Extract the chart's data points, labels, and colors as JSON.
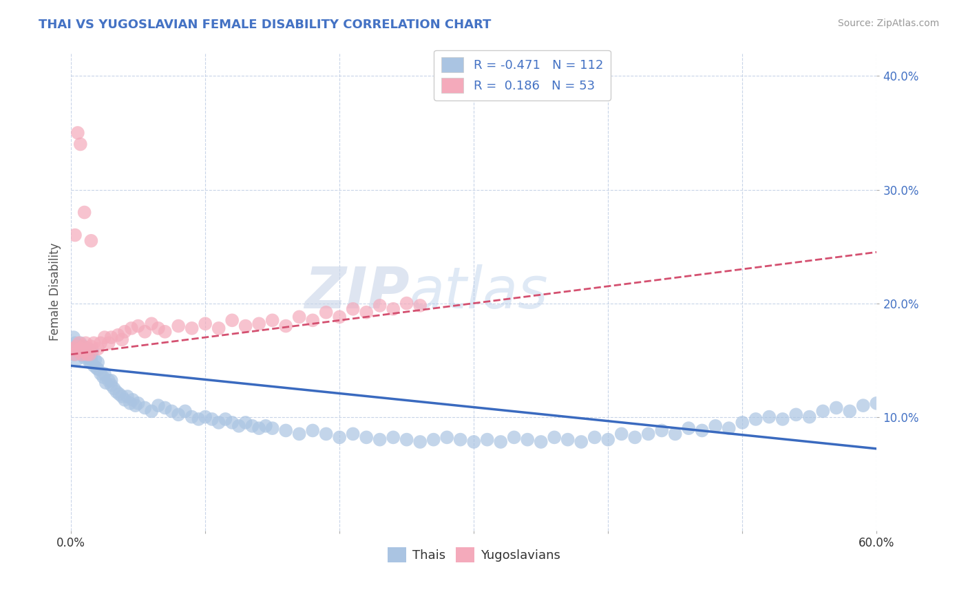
{
  "title": "THAI VS YUGOSLAVIAN FEMALE DISABILITY CORRELATION CHART",
  "source": "Source: ZipAtlas.com",
  "ylabel": "Female Disability",
  "xmin": 0.0,
  "xmax": 0.6,
  "ymin": 0.0,
  "ymax": 0.42,
  "yticks": [
    0.1,
    0.2,
    0.3,
    0.4
  ],
  "ytick_labels": [
    "10.0%",
    "20.0%",
    "30.0%",
    "40.0%"
  ],
  "xticks": [
    0.0,
    0.1,
    0.2,
    0.3,
    0.4,
    0.5,
    0.6
  ],
  "thai_R": -0.471,
  "thai_N": 112,
  "yugo_R": 0.186,
  "yugo_N": 53,
  "thai_color": "#aac4e2",
  "yugo_color": "#f4aabb",
  "thai_line_color": "#3a6abf",
  "yugo_line_color": "#d45070",
  "legend_text_color": "#4472c4",
  "title_color": "#4472c4",
  "watermark_color": "#c8d4e8",
  "background_color": "#ffffff",
  "grid_color": "#c8d4e8",
  "thai_scatter_x": [
    0.002,
    0.003,
    0.004,
    0.005,
    0.006,
    0.007,
    0.008,
    0.009,
    0.01,
    0.011,
    0.012,
    0.013,
    0.014,
    0.015,
    0.016,
    0.017,
    0.018,
    0.019,
    0.02,
    0.022,
    0.024,
    0.026,
    0.028,
    0.03,
    0.032,
    0.034,
    0.036,
    0.038,
    0.04,
    0.042,
    0.044,
    0.046,
    0.048,
    0.05,
    0.055,
    0.06,
    0.065,
    0.07,
    0.075,
    0.08,
    0.085,
    0.09,
    0.095,
    0.1,
    0.105,
    0.11,
    0.115,
    0.12,
    0.125,
    0.13,
    0.135,
    0.14,
    0.145,
    0.15,
    0.16,
    0.17,
    0.18,
    0.19,
    0.2,
    0.21,
    0.22,
    0.23,
    0.24,
    0.25,
    0.26,
    0.27,
    0.28,
    0.29,
    0.3,
    0.31,
    0.32,
    0.33,
    0.34,
    0.35,
    0.36,
    0.37,
    0.38,
    0.39,
    0.4,
    0.41,
    0.42,
    0.43,
    0.44,
    0.45,
    0.46,
    0.47,
    0.48,
    0.49,
    0.5,
    0.51,
    0.52,
    0.53,
    0.54,
    0.55,
    0.56,
    0.57,
    0.58,
    0.59,
    0.6,
    0.002,
    0.003,
    0.004,
    0.005,
    0.006,
    0.008,
    0.01,
    0.012,
    0.015,
    0.02,
    0.025,
    0.03
  ],
  "thai_scatter_y": [
    0.155,
    0.16,
    0.15,
    0.163,
    0.158,
    0.165,
    0.155,
    0.162,
    0.158,
    0.153,
    0.16,
    0.155,
    0.148,
    0.152,
    0.158,
    0.145,
    0.15,
    0.143,
    0.148,
    0.138,
    0.135,
    0.13,
    0.132,
    0.128,
    0.125,
    0.122,
    0.12,
    0.118,
    0.115,
    0.118,
    0.112,
    0.115,
    0.11,
    0.112,
    0.108,
    0.105,
    0.11,
    0.108,
    0.105,
    0.102,
    0.105,
    0.1,
    0.098,
    0.1,
    0.098,
    0.095,
    0.098,
    0.095,
    0.092,
    0.095,
    0.092,
    0.09,
    0.092,
    0.09,
    0.088,
    0.085,
    0.088,
    0.085,
    0.082,
    0.085,
    0.082,
    0.08,
    0.082,
    0.08,
    0.078,
    0.08,
    0.082,
    0.08,
    0.078,
    0.08,
    0.078,
    0.082,
    0.08,
    0.078,
    0.082,
    0.08,
    0.078,
    0.082,
    0.08,
    0.085,
    0.082,
    0.085,
    0.088,
    0.085,
    0.09,
    0.088,
    0.092,
    0.09,
    0.095,
    0.098,
    0.1,
    0.098,
    0.102,
    0.1,
    0.105,
    0.108,
    0.105,
    0.11,
    0.112,
    0.17,
    0.165,
    0.16,
    0.158,
    0.162,
    0.155,
    0.152,
    0.158,
    0.148,
    0.142,
    0.138,
    0.132
  ],
  "yugo_scatter_x": [
    0.002,
    0.003,
    0.004,
    0.005,
    0.006,
    0.007,
    0.008,
    0.009,
    0.01,
    0.011,
    0.012,
    0.013,
    0.014,
    0.015,
    0.017,
    0.02,
    0.022,
    0.025,
    0.028,
    0.03,
    0.035,
    0.038,
    0.04,
    0.045,
    0.05,
    0.055,
    0.06,
    0.065,
    0.07,
    0.08,
    0.09,
    0.1,
    0.11,
    0.12,
    0.13,
    0.14,
    0.15,
    0.16,
    0.17,
    0.18,
    0.19,
    0.2,
    0.21,
    0.22,
    0.23,
    0.24,
    0.25,
    0.26,
    0.003,
    0.005,
    0.007,
    0.01,
    0.015
  ],
  "yugo_scatter_y": [
    0.16,
    0.155,
    0.162,
    0.158,
    0.165,
    0.16,
    0.155,
    0.162,
    0.158,
    0.165,
    0.155,
    0.16,
    0.155,
    0.162,
    0.165,
    0.16,
    0.165,
    0.17,
    0.165,
    0.17,
    0.172,
    0.168,
    0.175,
    0.178,
    0.18,
    0.175,
    0.182,
    0.178,
    0.175,
    0.18,
    0.178,
    0.182,
    0.178,
    0.185,
    0.18,
    0.182,
    0.185,
    0.18,
    0.188,
    0.185,
    0.192,
    0.188,
    0.195,
    0.192,
    0.198,
    0.195,
    0.2,
    0.198,
    0.26,
    0.35,
    0.34,
    0.28,
    0.255
  ],
  "yugo_line_start_x": 0.0,
  "yugo_line_start_y": 0.155,
  "yugo_line_end_x": 0.6,
  "yugo_line_end_y": 0.245,
  "thai_line_start_x": 0.0,
  "thai_line_start_y": 0.145,
  "thai_line_end_x": 0.6,
  "thai_line_end_y": 0.072
}
